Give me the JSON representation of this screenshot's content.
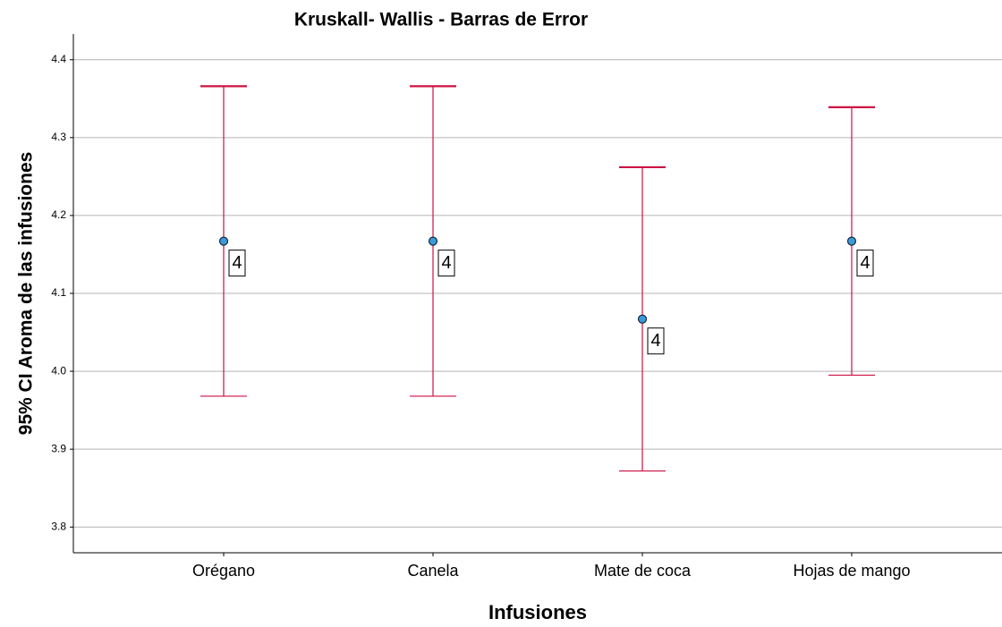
{
  "chart_data": {
    "type": "errorbar",
    "title": "Kruskall- Wallis - Barras de Error",
    "x_label": "Infusiones",
    "y_label": "95% CI Aroma de las infusiones",
    "categories": [
      "Orégano",
      "Canela",
      "Mate de coca",
      "Hojas de mango"
    ],
    "values": [
      4.167,
      4.167,
      4.067,
      4.167
    ],
    "upper": [
      4.366,
      4.366,
      4.262,
      4.339
    ],
    "lower": [
      3.968,
      3.968,
      3.872,
      3.995
    ],
    "point_labels": [
      4,
      4,
      4,
      4
    ],
    "color": "#cc1144",
    "marker_color": "#3a9ad9",
    "ylim": [
      3.767,
      4.433
    ],
    "yticks": [
      {
        "value": 3.8,
        "label": "3.8"
      },
      {
        "value": 3.9,
        "label": "3.9"
      },
      {
        "value": 4.0,
        "label": "4.0"
      },
      {
        "value": 4.1,
        "label": "4.1"
      },
      {
        "value": 4.2,
        "label": "4.2"
      },
      {
        "value": 4.3,
        "label": "4.3"
      },
      {
        "value": 4.4,
        "label": "4.4"
      }
    ],
    "grid": true
  }
}
